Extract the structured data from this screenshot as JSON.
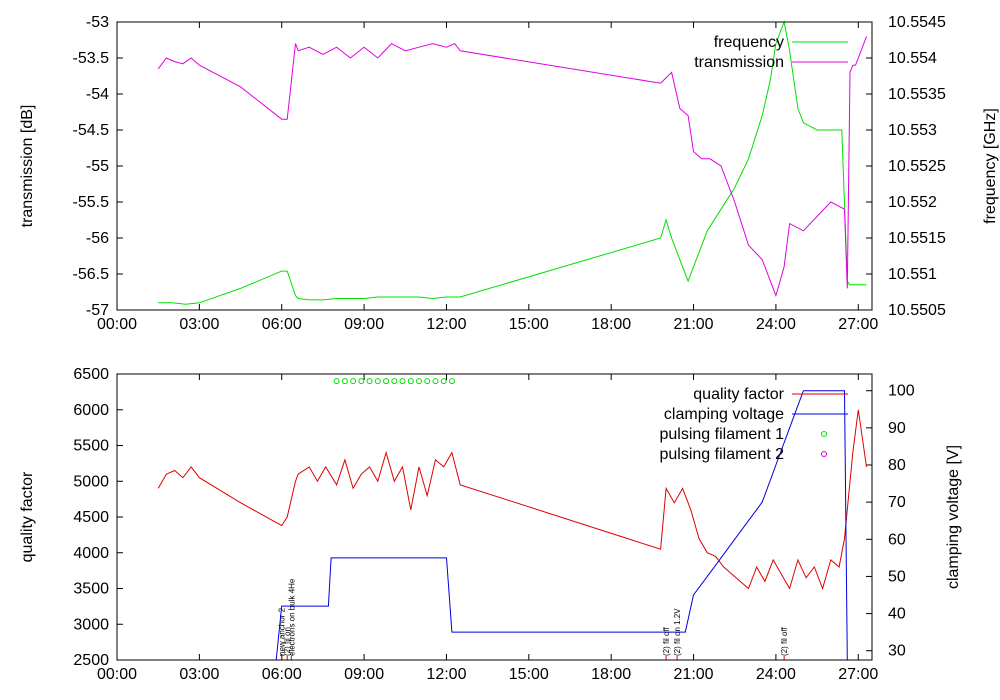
{
  "chart_data": [
    {
      "type": "line",
      "ylabel": "transmission [dB]",
      "y2label": "frequency [GHz]",
      "x_ticks": [
        "00:00",
        "03:00",
        "06:00",
        "09:00",
        "12:00",
        "15:00",
        "18:00",
        "21:00",
        "24:00",
        "27:00"
      ],
      "xlim": [
        0,
        27.5
      ],
      "ylim": [
        -57,
        -53
      ],
      "y_ticks": [
        "-53",
        "-53.5",
        "-54",
        "-54.5",
        "-55",
        "-55.5",
        "-56",
        "-56.5",
        "-57"
      ],
      "y2lim": [
        10.5505,
        10.5545
      ],
      "y2_ticks": [
        "10.5545",
        "10.554",
        "10.5535",
        "10.553",
        "10.5525",
        "10.552",
        "10.5515",
        "10.551",
        "10.5505"
      ],
      "legend_position": "top-right",
      "series": [
        {
          "name": "frequency",
          "axis": "y2",
          "color": "#00e000",
          "x": [
            1.5,
            2.0,
            2.5,
            3.0,
            4.5,
            6.0,
            6.2,
            6.5,
            6.6,
            7.0,
            7.5,
            8.0,
            8.5,
            9.0,
            9.5,
            10.0,
            10.5,
            11.0,
            11.5,
            12.0,
            12.5,
            19.8,
            20.0,
            20.2,
            20.5,
            20.8,
            21.0,
            21.5,
            22.0,
            22.5,
            23.0,
            23.5,
            23.8,
            24.0,
            24.3,
            24.5,
            24.8,
            25.0,
            25.5,
            26.0,
            26.4,
            26.6,
            26.7,
            27.0,
            27.3
          ],
          "y": [
            10.5506,
            10.5506,
            10.55058,
            10.5506,
            10.5508,
            10.55104,
            10.55104,
            10.5507,
            10.55066,
            10.55064,
            10.55064,
            10.55066,
            10.55066,
            10.55066,
            10.55068,
            10.55068,
            10.55068,
            10.55068,
            10.55066,
            10.55068,
            10.55068,
            10.5515,
            10.55175,
            10.5515,
            10.5512,
            10.5509,
            10.5511,
            10.5516,
            10.5519,
            10.5522,
            10.5526,
            10.5532,
            10.5537,
            10.5542,
            10.5545,
            10.5541,
            10.5533,
            10.5531,
            10.553,
            10.553,
            10.553,
            10.5509,
            10.55085,
            10.55085,
            10.55085
          ]
        },
        {
          "name": "transmission",
          "axis": "y",
          "color": "#e000e0",
          "x": [
            1.5,
            1.8,
            2.1,
            2.4,
            2.7,
            3.0,
            4.5,
            6.0,
            6.2,
            6.5,
            6.6,
            7.0,
            7.5,
            8.0,
            8.5,
            9.0,
            9.5,
            10.0,
            10.5,
            11.0,
            11.5,
            12.0,
            12.3,
            12.5,
            19.8,
            20.2,
            20.5,
            20.8,
            21.0,
            21.3,
            21.6,
            22.0,
            22.5,
            23.0,
            23.5,
            24.0,
            24.3,
            24.5,
            25.0,
            25.5,
            26.0,
            26.5,
            26.6,
            26.7,
            26.8,
            26.9,
            27.0,
            27.3
          ],
          "y": [
            -53.65,
            -53.5,
            -53.55,
            -53.58,
            -53.5,
            -53.6,
            -53.9,
            -54.35,
            -54.35,
            -53.3,
            -53.4,
            -53.35,
            -53.45,
            -53.35,
            -53.5,
            -53.35,
            -53.5,
            -53.3,
            -53.4,
            -53.35,
            -53.3,
            -53.35,
            -53.3,
            -53.4,
            -53.85,
            -53.7,
            -54.2,
            -54.3,
            -54.8,
            -54.9,
            -54.9,
            -55.0,
            -55.5,
            -56.1,
            -56.3,
            -56.8,
            -56.4,
            -55.8,
            -55.9,
            -55.7,
            -55.5,
            -55.6,
            -56.7,
            -53.7,
            -53.6,
            -53.6,
            -53.5,
            -53.2
          ]
        }
      ]
    },
    {
      "type": "line",
      "ylabel": "quality factor",
      "y2label": "clamping voltage [V]",
      "x_ticks": [
        "00:00",
        "03:00",
        "06:00",
        "09:00",
        "12:00",
        "15:00",
        "18:00",
        "21:00",
        "24:00",
        "27:00"
      ],
      "xlim": [
        0,
        27.5
      ],
      "ylim": [
        2500,
        6500
      ],
      "y_ticks": [
        "6500",
        "6000",
        "5500",
        "5000",
        "4500",
        "4000",
        "3500",
        "3000",
        "2500"
      ],
      "y2lim": [
        27.5,
        104.5
      ],
      "y2_ticks": [
        "100",
        "90",
        "80",
        "70",
        "60",
        "50",
        "40",
        "30"
      ],
      "legend_position": "top-right",
      "series": [
        {
          "name": "quality factor",
          "axis": "y",
          "color": "#e00000",
          "x": [
            1.5,
            1.8,
            2.1,
            2.4,
            2.7,
            3.0,
            4.5,
            6.0,
            6.2,
            6.5,
            6.6,
            7.0,
            7.3,
            7.6,
            8.0,
            8.3,
            8.6,
            8.9,
            9.2,
            9.5,
            9.8,
            10.1,
            10.4,
            10.7,
            11.0,
            11.3,
            11.6,
            11.9,
            12.2,
            12.5,
            19.8,
            20.0,
            20.3,
            20.6,
            20.9,
            21.2,
            21.5,
            21.8,
            22.1,
            22.4,
            22.7,
            23.0,
            23.3,
            23.6,
            23.9,
            24.2,
            24.5,
            24.8,
            25.1,
            25.4,
            25.7,
            26.0,
            26.3,
            26.5,
            26.8,
            27.0,
            27.3
          ],
          "y": [
            4900,
            5100,
            5150,
            5050,
            5200,
            5050,
            4700,
            4380,
            4500,
            5000,
            5100,
            5200,
            5000,
            5200,
            4950,
            5300,
            4900,
            5100,
            5200,
            5000,
            5400,
            5000,
            5200,
            4600,
            5200,
            4800,
            5300,
            5200,
            5400,
            4950,
            4050,
            4900,
            4700,
            4900,
            4600,
            4200,
            4000,
            3950,
            3800,
            3700,
            3600,
            3500,
            3800,
            3600,
            3900,
            3700,
            3500,
            3900,
            3650,
            3800,
            3500,
            3900,
            3800,
            4200,
            5400,
            6000,
            5200
          ]
        },
        {
          "name": "clamping voltage",
          "axis": "y2",
          "color": "#0000e0",
          "x": [
            5.8,
            6.0,
            6.2,
            7.7,
            7.8,
            12.0,
            12.2,
            20.3,
            20.5,
            20.7,
            21.0,
            21.5,
            22.0,
            22.5,
            23.0,
            23.5,
            24.0,
            24.5,
            25.0,
            26.5,
            26.6
          ],
          "y": [
            27.5,
            42,
            42,
            42,
            55,
            55,
            35,
            35,
            35,
            35,
            45,
            50,
            55,
            60,
            65,
            70,
            80,
            90,
            100,
            100,
            27.5
          ]
        },
        {
          "name": "pulsing filament 1",
          "axis": "y",
          "color": "#00e000",
          "marker": "circle",
          "x": [
            8.0,
            8.3,
            8.6,
            8.9,
            9.2,
            9.5,
            9.8,
            10.1,
            10.4,
            10.7,
            11.0,
            11.3,
            11.6,
            11.9,
            12.2
          ],
          "y": [
            6400,
            6400,
            6400,
            6400,
            6400,
            6400,
            6400,
            6400,
            6400,
            6400,
            6400,
            6400,
            6400,
            6400,
            6400
          ]
        },
        {
          "name": "pulsing filament 2",
          "axis": "y",
          "color": "#e000e0",
          "marker": "circle",
          "x": [],
          "y": []
        }
      ],
      "annotations": [
        {
          "x": 6.0,
          "text": "new anchor 2"
        },
        {
          "x": 6.2,
          "text": "(2) fil on"
        },
        {
          "x": 6.35,
          "text": "electrons on bulk 4He"
        },
        {
          "x": 20.0,
          "text": "(2) fil off"
        },
        {
          "x": 20.4,
          "text": "(2) fil on 1.2V"
        },
        {
          "x": 24.3,
          "text": "(2) fil off"
        }
      ]
    }
  ]
}
